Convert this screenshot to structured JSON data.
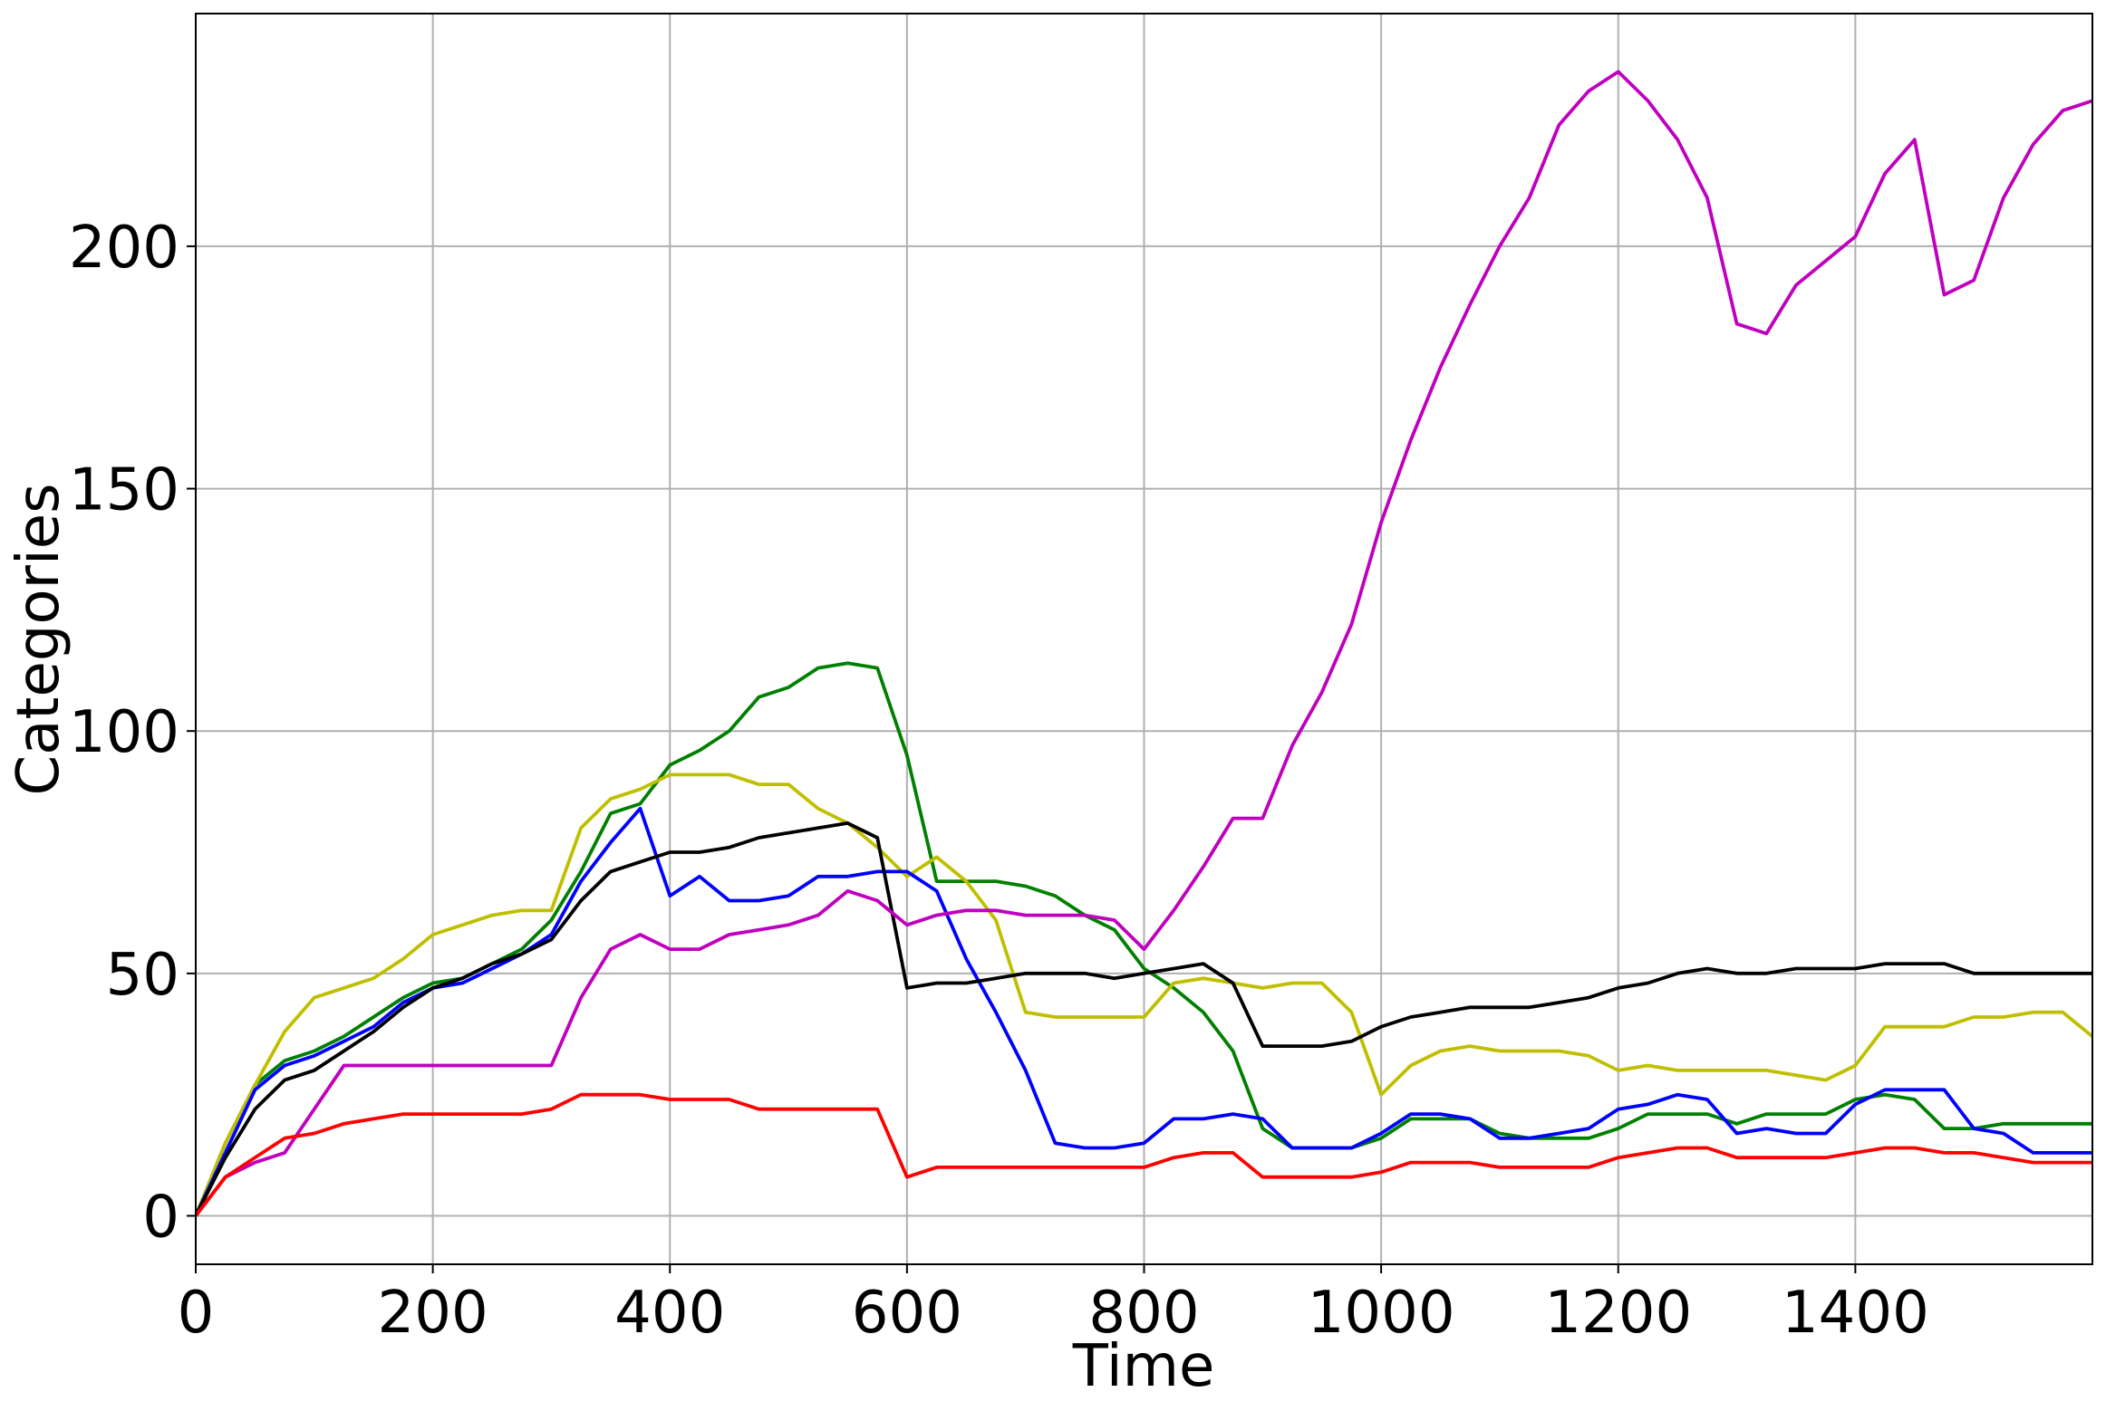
{
  "chart_data": {
    "type": "line",
    "xlabel": "Time",
    "ylabel": "Categories",
    "x": [
      0,
      25,
      50,
      75,
      100,
      125,
      150,
      175,
      200,
      225,
      250,
      275,
      300,
      325,
      350,
      375,
      400,
      425,
      450,
      475,
      500,
      525,
      550,
      575,
      600,
      625,
      650,
      675,
      700,
      725,
      750,
      775,
      800,
      825,
      850,
      875,
      900,
      925,
      950,
      975,
      1000,
      1025,
      1050,
      1075,
      1100,
      1125,
      1150,
      1175,
      1200,
      1225,
      1250,
      1275,
      1300,
      1325,
      1350,
      1375,
      1400,
      1425,
      1450,
      1475,
      1500,
      1525,
      1550,
      1575,
      1600
    ],
    "series": [
      {
        "color": "#008000",
        "values": [
          0,
          15,
          27,
          32,
          34,
          37,
          41,
          45,
          48,
          49,
          52,
          55,
          61,
          71,
          83,
          85,
          93,
          96,
          100,
          107,
          109,
          113,
          114,
          113,
          95,
          69,
          69,
          69,
          68,
          66,
          62,
          59,
          51,
          47,
          42,
          34,
          18,
          14,
          14,
          14,
          16,
          20,
          20,
          20,
          17,
          16,
          16,
          16,
          18,
          21,
          21,
          21,
          19,
          21,
          21,
          21,
          24,
          25,
          24,
          18,
          18,
          19,
          19,
          19,
          19
        ]
      },
      {
        "color": "#bfbf00",
        "values": [
          0,
          15,
          27,
          38,
          45,
          47,
          49,
          53,
          58,
          60,
          62,
          63,
          63,
          80,
          86,
          88,
          91,
          91,
          91,
          89,
          89,
          84,
          81,
          76,
          70,
          74,
          69,
          61,
          42,
          41,
          41,
          41,
          41,
          48,
          49,
          48,
          47,
          48,
          48,
          42,
          25,
          31,
          34,
          35,
          34,
          34,
          34,
          33,
          30,
          31,
          30,
          30,
          30,
          30,
          29,
          28,
          31,
          39,
          39,
          39,
          41,
          41,
          42,
          42,
          37
        ]
      },
      {
        "color": "#0000ff",
        "values": [
          0,
          13,
          26,
          31,
          33,
          36,
          39,
          44,
          47,
          48,
          51,
          54,
          58,
          69,
          77,
          84,
          66,
          70,
          65,
          65,
          66,
          70,
          70,
          71,
          71,
          67,
          53,
          42,
          30,
          15,
          14,
          14,
          15,
          20,
          20,
          21,
          20,
          14,
          14,
          14,
          17,
          21,
          21,
          20,
          16,
          16,
          17,
          18,
          22,
          23,
          25,
          24,
          17,
          18,
          17,
          17,
          23,
          26,
          26,
          26,
          18,
          17,
          13,
          13,
          13
        ]
      },
      {
        "color": "#000000",
        "values": [
          0,
          12,
          22,
          28,
          30,
          34,
          38,
          43,
          47,
          49,
          52,
          54,
          57,
          65,
          71,
          73,
          75,
          75,
          76,
          78,
          79,
          80,
          81,
          78,
          47,
          48,
          48,
          49,
          50,
          50,
          50,
          49,
          50,
          51,
          52,
          48,
          35,
          35,
          35,
          36,
          39,
          41,
          42,
          43,
          43,
          43,
          44,
          45,
          47,
          48,
          50,
          51,
          50,
          50,
          51,
          51,
          51,
          52,
          52,
          52,
          50,
          50,
          50,
          50,
          50
        ]
      },
      {
        "color": "#bf00bf",
        "values": [
          0,
          8,
          11,
          13,
          22,
          31,
          31,
          31,
          31,
          31,
          31,
          31,
          31,
          45,
          55,
          58,
          55,
          55,
          58,
          59,
          60,
          62,
          67,
          65,
          60,
          62,
          63,
          63,
          62,
          62,
          62,
          61,
          55,
          63,
          72,
          82,
          82,
          97,
          108,
          122,
          143,
          160,
          175,
          188,
          200,
          210,
          225,
          232,
          236,
          230,
          222,
          210,
          184,
          182,
          192,
          197,
          202,
          215,
          222,
          190,
          193,
          210,
          221,
          228,
          230
        ]
      },
      {
        "color": "#ff0000",
        "values": [
          0,
          8,
          12,
          16,
          17,
          19,
          20,
          21,
          21,
          21,
          21,
          21,
          22,
          25,
          25,
          25,
          24,
          24,
          24,
          22,
          22,
          22,
          22,
          22,
          8,
          10,
          10,
          10,
          10,
          10,
          10,
          10,
          10,
          12,
          13,
          13,
          8,
          8,
          8,
          8,
          9,
          11,
          11,
          11,
          10,
          10,
          10,
          10,
          12,
          13,
          14,
          14,
          12,
          12,
          12,
          12,
          13,
          14,
          14,
          13,
          13,
          12,
          11,
          11,
          11
        ]
      }
    ],
    "xlim": [
      0,
      1600
    ],
    "ylim": [
      -10,
      248
    ],
    "xticks": [
      0,
      200,
      400,
      600,
      800,
      1000,
      1200,
      1400
    ],
    "yticks": [
      0,
      50,
      100,
      150,
      200
    ],
    "grid": true
  }
}
